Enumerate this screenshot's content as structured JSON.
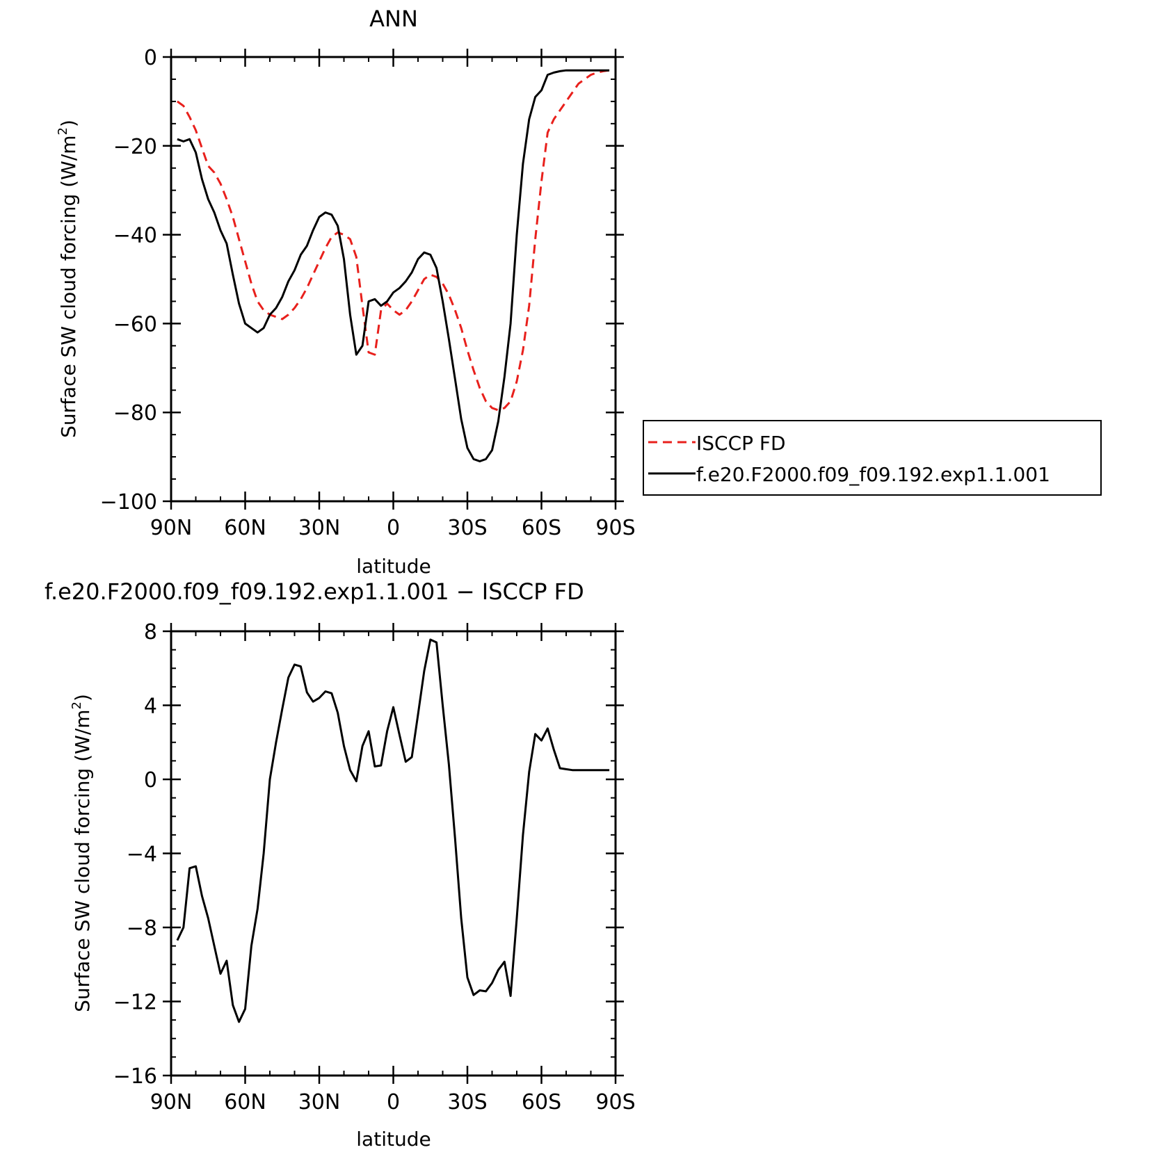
{
  "colors": {
    "obs": "#e8201c",
    "model": "#000000",
    "frame": "#000000"
  },
  "chart_data": [
    {
      "type": "line",
      "title": "ANN",
      "xlabel": "latitude",
      "ylabel_main": "Surface SW cloud forcing (W/m",
      "ylabel_sup": "2",
      "ylabel_end": ")",
      "xlim": [
        -90,
        90
      ],
      "ylim": [
        -100,
        0
      ],
      "xticks": [
        -90,
        -60,
        -30,
        0,
        30,
        60,
        90
      ],
      "xtick_labels": [
        "90N",
        "60N",
        "30N",
        "0",
        "30S",
        "60S",
        "90S"
      ],
      "yticks": [
        0,
        -20,
        -40,
        -60,
        -80,
        -100
      ],
      "ytick_labels": [
        "0",
        "−20",
        "−40",
        "−60",
        "−80",
        "−100"
      ],
      "legend": {
        "position": "right",
        "items": [
          {
            "label": "ISCCP FD",
            "style": "dashed",
            "color": "#e8201c"
          },
          {
            "label": "f.e20.F2000.f09_f09.192.exp1.1.001",
            "style": "solid",
            "color": "#000000"
          }
        ]
      },
      "series": [
        {
          "name": "ISCCP FD",
          "style": "dashed",
          "x": [
            -87.5,
            -85,
            -82.5,
            -80,
            -77.5,
            -75,
            -72.5,
            -70,
            -67.5,
            -65,
            -62.5,
            -60,
            -57.5,
            -55,
            -52.5,
            -50,
            -47.5,
            -45,
            -42.5,
            -40,
            -37.5,
            -35,
            -32.5,
            -30,
            -27.5,
            -25,
            -22.5,
            -20,
            -17.5,
            -15,
            -12.5,
            -10,
            -7.5,
            -5,
            -2.5,
            0,
            2.5,
            5,
            7.5,
            10,
            12.5,
            15,
            17.5,
            20,
            22.5,
            25,
            27.5,
            30,
            32.5,
            35,
            37.5,
            40,
            42.5,
            45,
            47.5,
            50,
            52.5,
            55,
            57.5,
            60,
            62.5,
            65,
            67.5,
            70,
            72.5,
            75,
            77.5,
            80,
            82.5,
            85,
            87.5
          ],
          "y": [
            -10,
            -11,
            -13.5,
            -16.5,
            -20.5,
            -24.5,
            -26,
            -28.5,
            -32,
            -36,
            -41,
            -46,
            -51,
            -55,
            -57,
            -58,
            -58.5,
            -59,
            -58,
            -56.5,
            -54.5,
            -52,
            -49,
            -46,
            -43,
            -40.5,
            -39.5,
            -40,
            -41,
            -45,
            -56,
            -66.5,
            -67,
            -57,
            -55.5,
            -57,
            -58,
            -57,
            -55,
            -52.5,
            -50,
            -49,
            -49.5,
            -51,
            -53.5,
            -57,
            -61,
            -66,
            -70.5,
            -74.5,
            -77.5,
            -79,
            -79.5,
            -79,
            -77.5,
            -73,
            -66,
            -56,
            -41,
            -28,
            -17,
            -14,
            -12,
            -10,
            -8,
            -6,
            -5,
            -4,
            -3.5,
            -3.2,
            -3
          ]
        },
        {
          "name": "f.e20.F2000.f09_f09.192.exp1.1.001",
          "style": "solid",
          "x": [
            -87.5,
            -85,
            -82.5,
            -80,
            -77.5,
            -75,
            -72.5,
            -70,
            -67.5,
            -65,
            -62.5,
            -60,
            -57.5,
            -55,
            -52.5,
            -50,
            -47.5,
            -45,
            -42.5,
            -40,
            -37.5,
            -35,
            -32.5,
            -30,
            -27.5,
            -25,
            -22.5,
            -20,
            -17.5,
            -15,
            -12.5,
            -10,
            -7.5,
            -5,
            -2.5,
            0,
            2.5,
            5,
            7.5,
            10,
            12.5,
            15,
            17.5,
            20,
            22.5,
            25,
            27.5,
            30,
            32.5,
            35,
            37.5,
            40,
            42.5,
            45,
            47.5,
            50,
            52.5,
            55,
            57.5,
            60,
            62.5,
            65,
            67.5,
            70,
            72.5,
            75,
            77.5,
            80,
            82.5,
            85,
            87.5
          ],
          "y": [
            -18.5,
            -19,
            -18.5,
            -21.5,
            -27.5,
            -32,
            -35,
            -39,
            -42,
            -49,
            -55.5,
            -60,
            -61,
            -62,
            -61,
            -58,
            -56.5,
            -54,
            -50.5,
            -48,
            -44.5,
            -42.5,
            -39,
            -36,
            -35,
            -35.5,
            -38,
            -45.5,
            -58,
            -67,
            -65,
            -55,
            -54.5,
            -56,
            -55,
            -53,
            -52,
            -50.5,
            -48.5,
            -45.5,
            -44,
            -44.5,
            -47.5,
            -55,
            -63.5,
            -72.5,
            -81.5,
            -88,
            -90.5,
            -91,
            -90.5,
            -88.5,
            -82,
            -72,
            -60,
            -40,
            -24,
            -14,
            -9,
            -7.5,
            -4,
            -3.5,
            -3.2,
            -3,
            -3,
            -3,
            -3,
            -3,
            -3,
            -3,
            -3
          ]
        }
      ]
    },
    {
      "type": "line",
      "title": "f.e20.F2000.f09_f09.192.exp1.1.001 − ISCCP FD",
      "xlabel": "latitude",
      "ylabel_main": "Surface SW cloud forcing (W/m",
      "ylabel_sup": "2",
      "ylabel_end": ")",
      "xlim": [
        -90,
        90
      ],
      "ylim": [
        -16,
        8
      ],
      "xticks": [
        -90,
        -60,
        -30,
        0,
        30,
        60,
        90
      ],
      "xtick_labels": [
        "90N",
        "60N",
        "30N",
        "0",
        "30S",
        "60S",
        "90S"
      ],
      "yticks": [
        8,
        4,
        0,
        -4,
        -8,
        -12,
        -16
      ],
      "ytick_labels": [
        "8",
        "4",
        "0",
        "−4",
        "−8",
        "−12",
        "−16"
      ],
      "series": [
        {
          "style": "solid",
          "x": [
            -87.5,
            -85,
            -82.5,
            -80,
            -77.5,
            -75,
            -72.5,
            -70,
            -67.5,
            -65,
            -62.5,
            -60,
            -57.5,
            -55,
            -52.5,
            -50,
            -47.5,
            -45,
            -42.5,
            -40,
            -37.5,
            -35,
            -32.5,
            -30,
            -27.5,
            -25,
            -22.5,
            -20,
            -17.5,
            -15,
            -12.5,
            -10,
            -7.5,
            -5,
            -2.5,
            0,
            2.5,
            5,
            7.5,
            10,
            12.5,
            15,
            17.5,
            20,
            22.5,
            25,
            27.5,
            30,
            32.5,
            35,
            37.5,
            40,
            42.5,
            45,
            47.5,
            50,
            52.5,
            55,
            57.5,
            60,
            62.5,
            65,
            67.5,
            70,
            72.5,
            75,
            77.5,
            80,
            82.5,
            85,
            87.5
          ],
          "y": [
            -8.7,
            -8,
            -4.8,
            -4.7,
            -6.3,
            -7.5,
            -9,
            -10.5,
            -9.8,
            -12.2,
            -13.1,
            -12.4,
            -9,
            -7,
            -4,
            0,
            2,
            3.8,
            5.5,
            6.2,
            6.1,
            4.7,
            4.2,
            4.4,
            4.75,
            4.65,
            3.6,
            1.8,
            0.5,
            -0.1,
            1.8,
            2.6,
            0.7,
            0.75,
            2.6,
            3.9,
            2.4,
            0.95,
            1.2,
            3.5,
            5.85,
            7.55,
            7.4,
            4,
            0.8,
            -3.2,
            -7.5,
            -10.7,
            -11.65,
            -11.4,
            -11.45,
            -11,
            -10.3,
            -9.85,
            -11.7,
            -7.5,
            -3,
            0.4,
            2.45,
            2.1,
            2.75,
            1.6,
            0.6,
            0.55,
            0.5,
            0.5,
            0.5,
            0.5,
            0.5,
            0.5,
            0.5
          ]
        }
      ]
    }
  ]
}
